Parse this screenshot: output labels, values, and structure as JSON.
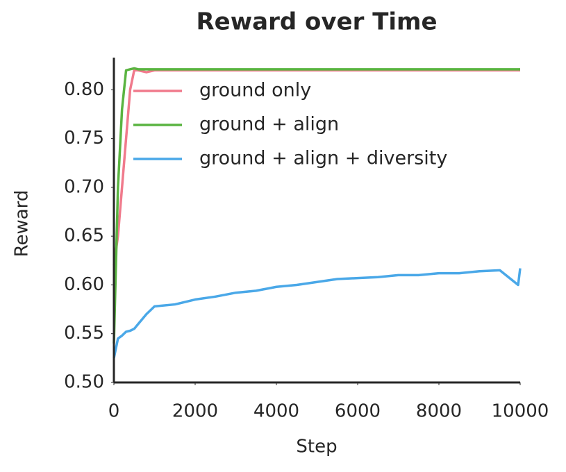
{
  "chart_data": {
    "type": "line",
    "title": "Reward over Time",
    "x_label": "Step",
    "y_label": "Reward",
    "x": [
      0,
      100,
      200,
      300,
      400,
      500,
      600,
      800,
      1000,
      1500,
      2000,
      2500,
      3000,
      3500,
      4000,
      4500,
      5000,
      5500,
      6000,
      6500,
      7000,
      7500,
      8000,
      8500,
      9000,
      9500,
      9950,
      10000
    ],
    "series": [
      {
        "name": "ground only",
        "color": "#f07a8c",
        "values": [
          0.62,
          0.65,
          0.7,
          0.75,
          0.8,
          0.82,
          0.82,
          0.818,
          0.82,
          0.82,
          0.82,
          0.82,
          0.82,
          0.82,
          0.82,
          0.82,
          0.82,
          0.82,
          0.82,
          0.82,
          0.82,
          0.82,
          0.82,
          0.82,
          0.82,
          0.82,
          0.82,
          0.82
        ]
      },
      {
        "name": "ground + align",
        "color": "#5ab441",
        "values": [
          0.54,
          0.7,
          0.78,
          0.82,
          0.821,
          0.822,
          0.821,
          0.821,
          0.821,
          0.821,
          0.821,
          0.821,
          0.821,
          0.821,
          0.821,
          0.821,
          0.821,
          0.821,
          0.821,
          0.821,
          0.821,
          0.821,
          0.821,
          0.821,
          0.821,
          0.821,
          0.821,
          0.821
        ]
      },
      {
        "name": "ground + align + diversity",
        "color": "#4aa8e8",
        "values": [
          0.525,
          0.545,
          0.548,
          0.552,
          0.553,
          0.555,
          0.56,
          0.57,
          0.578,
          0.58,
          0.585,
          0.588,
          0.592,
          0.594,
          0.598,
          0.6,
          0.603,
          0.606,
          0.607,
          0.608,
          0.61,
          0.61,
          0.612,
          0.612,
          0.614,
          0.615,
          0.6,
          0.617
        ]
      }
    ],
    "xlim": [
      0,
      10000
    ],
    "ylim": [
      0.5,
      0.833
    ],
    "xticks": [
      0,
      2000,
      4000,
      6000,
      8000,
      10000
    ],
    "yticks": [
      {
        "value": 0.5,
        "label": "0.50"
      },
      0.55,
      {
        "value": 0.6,
        "label": "0.60"
      },
      0.65,
      {
        "value": 0.7,
        "label": "0.70"
      },
      0.75,
      {
        "value": 0.8,
        "label": "0.80"
      }
    ],
    "legend": "upper right",
    "grid": false
  }
}
